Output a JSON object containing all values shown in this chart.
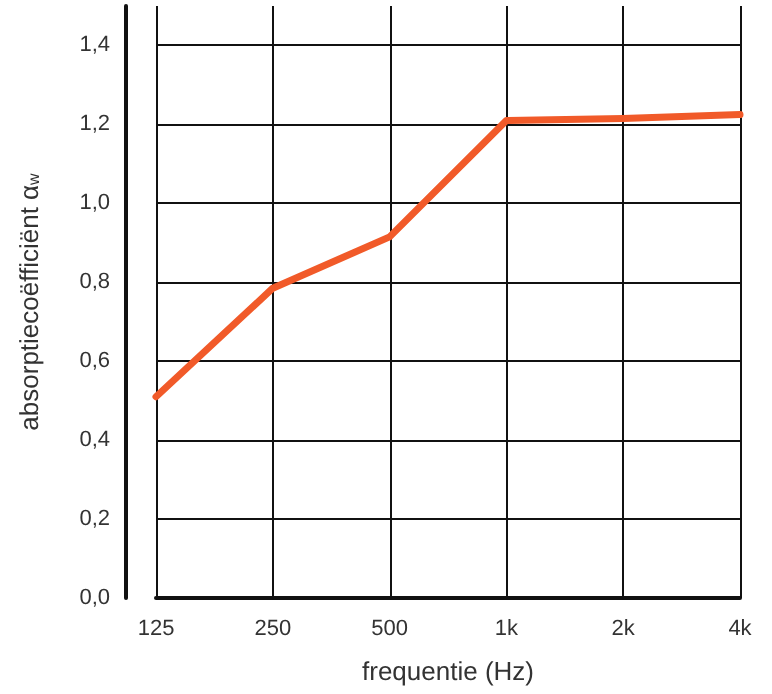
{
  "chart_data": {
    "type": "line",
    "xlabel": "frequentie (Hz)",
    "ylabel": "absorptiecoëfficiënt α$_{w}$",
    "categories": [
      "125",
      "250",
      "500",
      "1k",
      "2k",
      "4k"
    ],
    "series": [
      {
        "color": "#f15a29",
        "values": [
          0.51,
          0.785,
          0.915,
          1.21,
          1.215,
          1.225
        ]
      }
    ],
    "ylim": [
      0,
      1.5
    ],
    "yticks": [
      {
        "value": 0,
        "label": "0,0"
      },
      {
        "value": 0.2,
        "label": "0,2"
      },
      {
        "value": 0.4,
        "label": "0,4"
      },
      {
        "value": 0.6,
        "label": "0,6"
      },
      {
        "value": 0.8,
        "label": "0,8"
      },
      {
        "value": 1.0,
        "label": "1,0"
      },
      {
        "value": 1.2,
        "label": "1,2"
      },
      {
        "value": 1.4,
        "label": "1,4"
      }
    ],
    "grid": true,
    "marker": "none",
    "line_style": "solid"
  }
}
